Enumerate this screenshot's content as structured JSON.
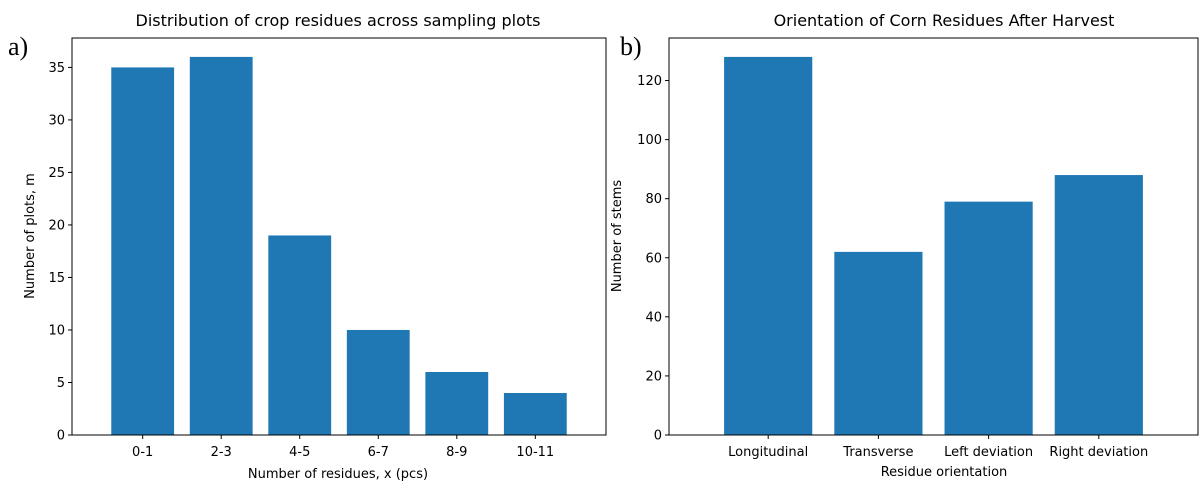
{
  "chart_data": [
    {
      "type": "bar",
      "panel_label": "a)",
      "title": "Distribution of crop residues across sampling plots",
      "xlabel": "Number of residues, x (pcs)",
      "ylabel": "Number of plots, m",
      "categories": [
        "0-1",
        "2-3",
        "4-5",
        "6-7",
        "8-9",
        "10-11"
      ],
      "values": [
        35,
        36,
        19,
        10,
        6,
        4
      ],
      "ylim": [
        0,
        37.8
      ],
      "yticks": [
        0,
        5,
        10,
        15,
        20,
        25,
        30,
        35
      ],
      "bar_color": "#1f77b4",
      "grid": false
    },
    {
      "type": "bar",
      "panel_label": "b)",
      "title": "Orientation of Corn Residues After Harvest",
      "xlabel": "Residue orientation",
      "ylabel": "Number of stems",
      "categories": [
        "Longitudinal",
        "Transverse",
        "Left deviation",
        "Right deviation"
      ],
      "values": [
        128,
        62,
        79,
        88
      ],
      "ylim": [
        0,
        134.4
      ],
      "yticks": [
        0,
        20,
        40,
        60,
        80,
        100,
        120
      ],
      "bar_color": "#1f77b4",
      "grid": false
    }
  ]
}
